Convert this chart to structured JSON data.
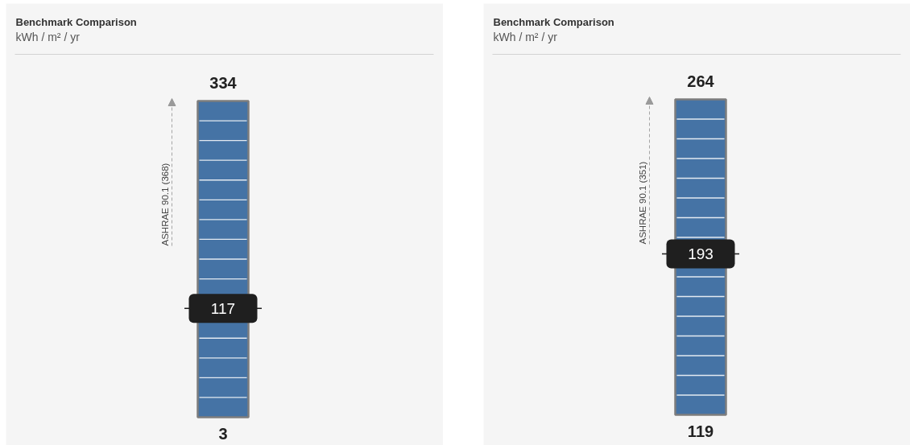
{
  "chart_data": [
    {
      "type": "other",
      "title": "Benchmark Comparison",
      "subtitle": "kWh / m² / yr",
      "values": [
        117
      ],
      "color": "#1f1f1f",
      "data_labels": true,
      "annotations": [
        "334",
        "ASHRAE 90.1 (368)",
        "3"
      ]
    },
    {
      "type": "other",
      "title": "Benchmark Comparison",
      "subtitle": "kWh / m² / yr",
      "values": [
        193
      ],
      "color": "#1f1f1f",
      "data_labels": true,
      "annotations": [
        "264",
        "ASHRAE 90.1 (351)",
        "119"
      ]
    }
  ]
}
